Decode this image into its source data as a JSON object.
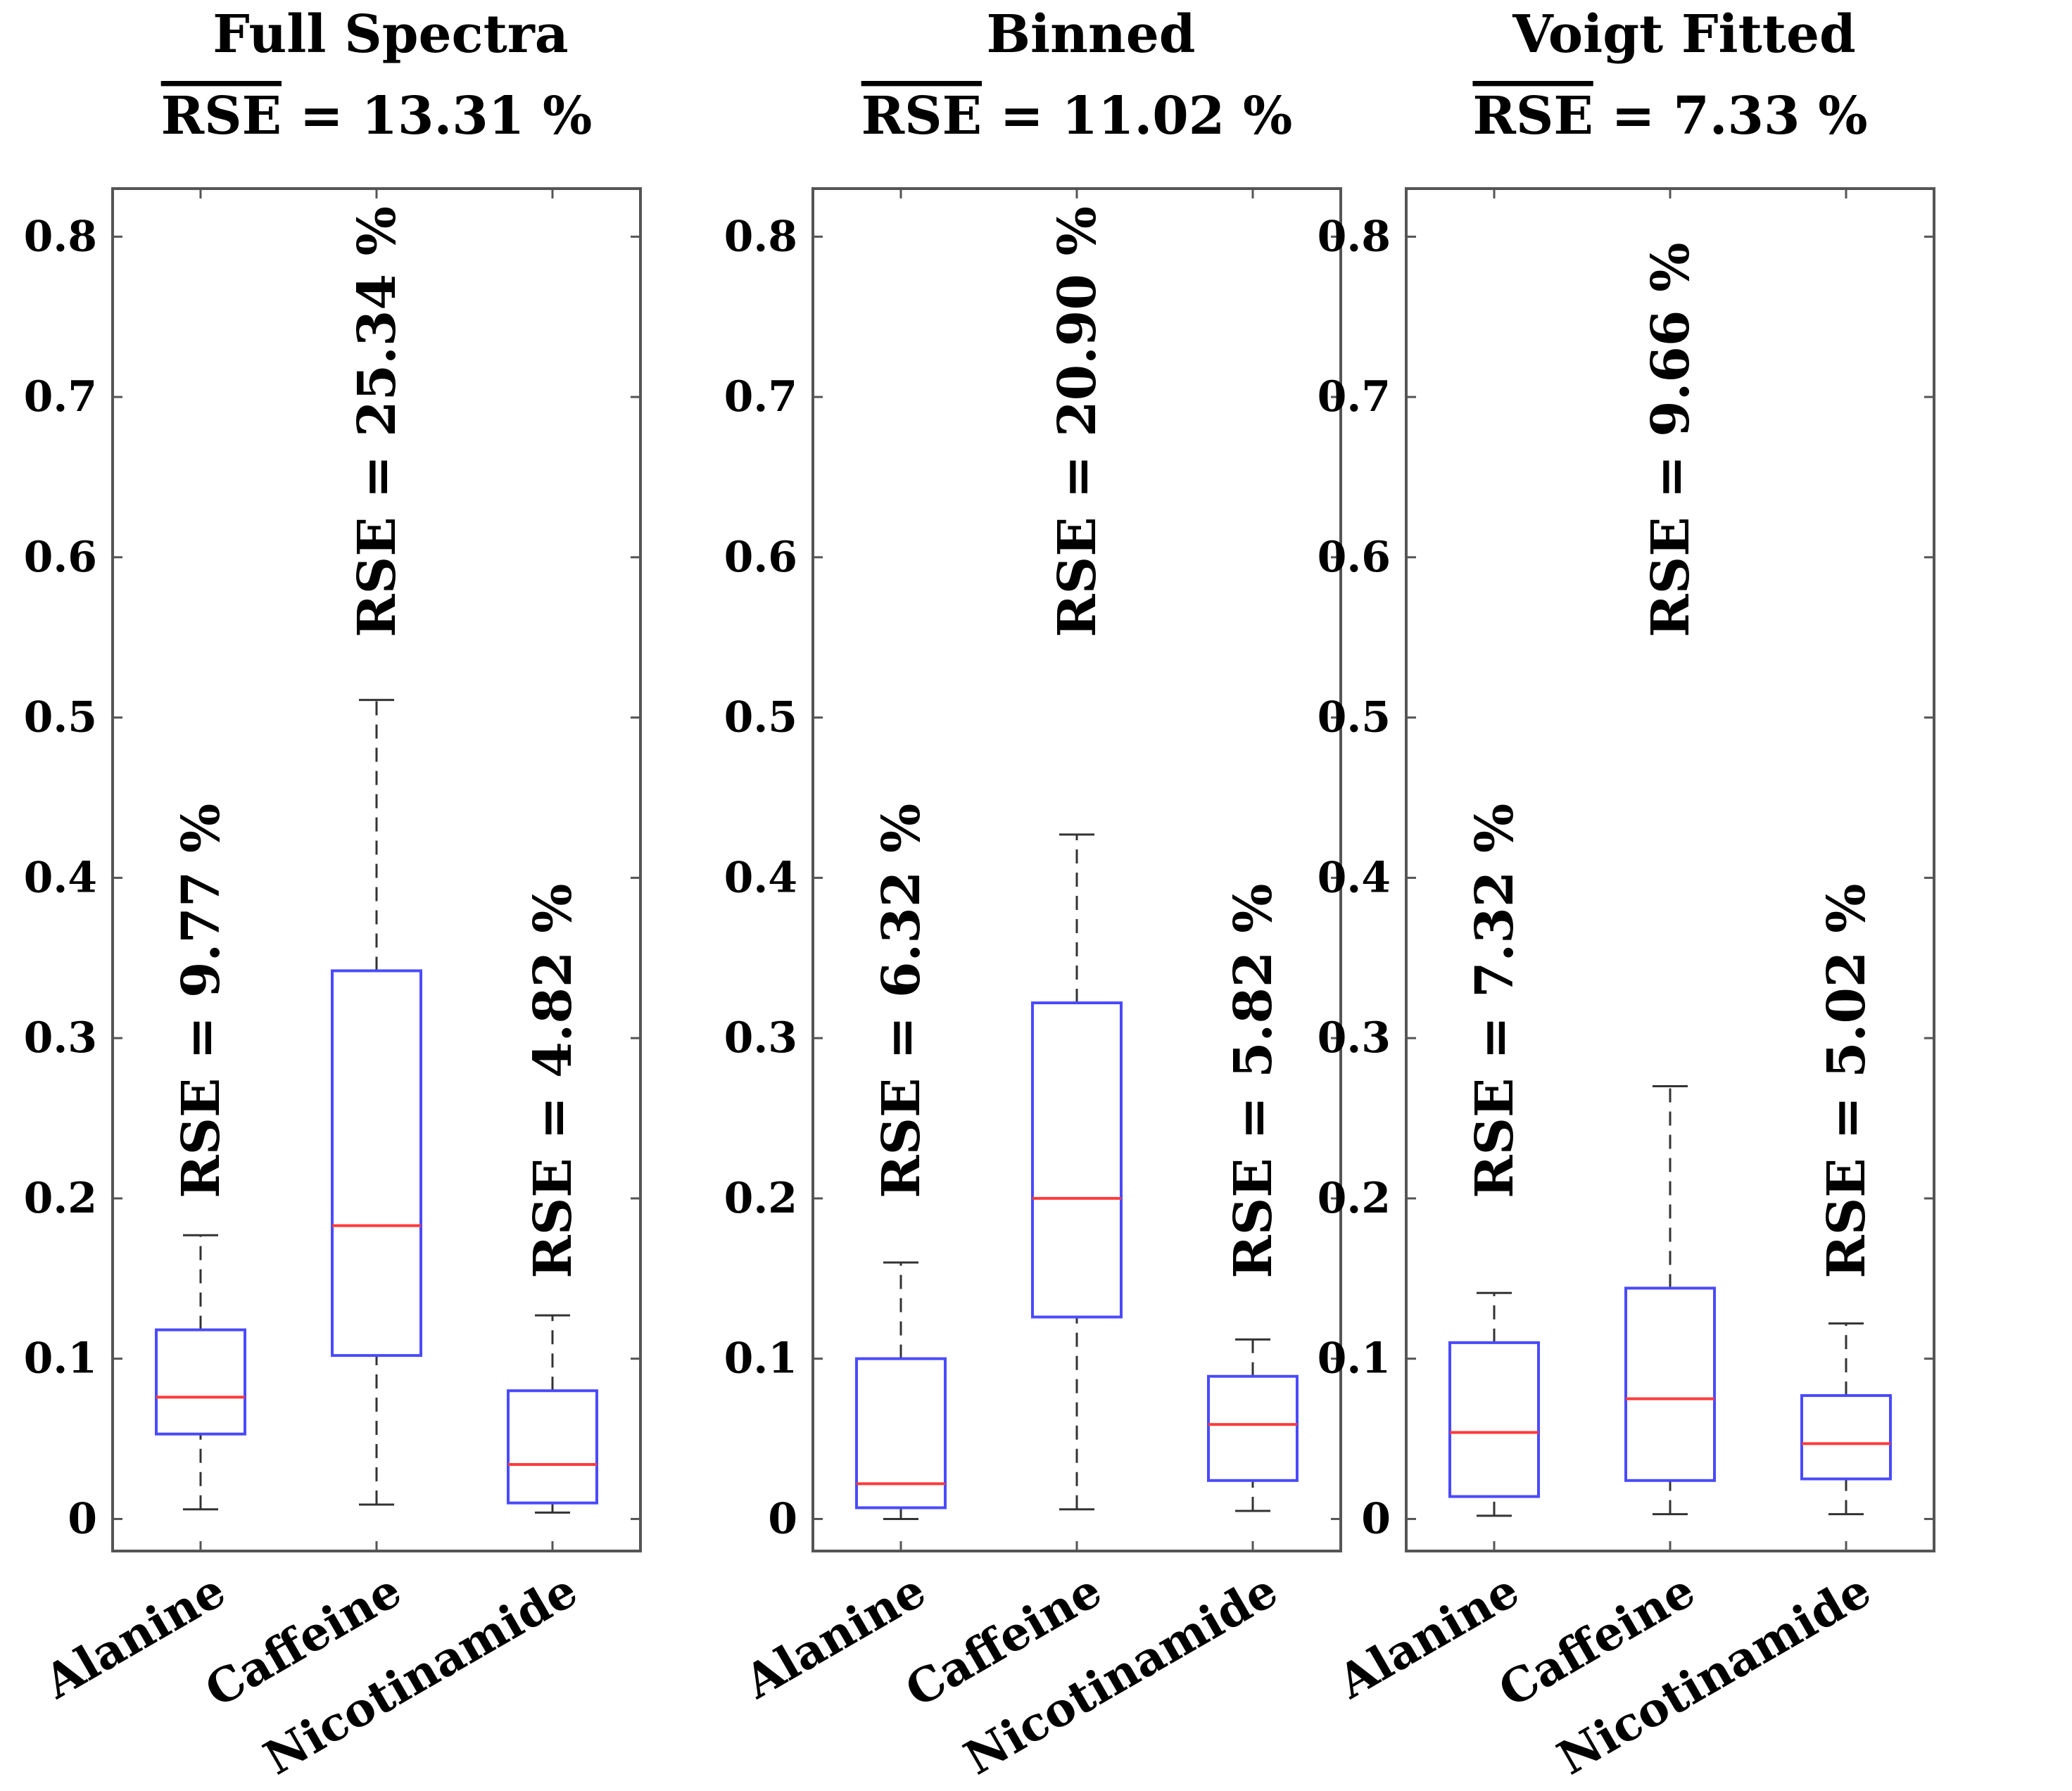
{
  "chart_data": [
    {
      "type": "box",
      "title": "Full Spectra",
      "subtitle": "RSE = 13.31 %",
      "subtitle_parts": {
        "overlined": "RSE",
        "rest": " = 13.31 %"
      },
      "ylim": [
        -0.02,
        0.83
      ],
      "yticks": [
        0,
        0.1,
        0.2,
        0.3,
        0.4,
        0.5,
        0.6,
        0.7,
        0.8
      ],
      "ytick_labels": [
        "0",
        "0.1",
        "0.2",
        "0.3",
        "0.4",
        "0.5",
        "0.6",
        "0.7",
        "0.8"
      ],
      "categories": [
        "Alanine",
        "Caffeine",
        "Nicotinamide"
      ],
      "boxes": [
        {
          "name": "Alanine",
          "min": 0.006,
          "q1": 0.053,
          "median": 0.076,
          "q3": 0.118,
          "max": 0.177,
          "label": "RSE = 9.77 %",
          "label_anchor": 0.2
        },
        {
          "name": "Caffeine",
          "min": 0.009,
          "q1": 0.102,
          "median": 0.183,
          "q3": 0.342,
          "max": 0.511,
          "label": "RSE = 25.34 %",
          "label_anchor": 0.55
        },
        {
          "name": "Nicotinamide",
          "min": 0.004,
          "q1": 0.01,
          "median": 0.034,
          "q3": 0.08,
          "max": 0.127,
          "label": "RSE = 4.82 %",
          "label_anchor": 0.15
        }
      ]
    },
    {
      "type": "box",
      "title": "Binned",
      "subtitle": "RSE = 11.02 %",
      "subtitle_parts": {
        "overlined": "RSE",
        "rest": " = 11.02 %"
      },
      "ylim": [
        -0.02,
        0.83
      ],
      "yticks": [
        0,
        0.1,
        0.2,
        0.3,
        0.4,
        0.5,
        0.6,
        0.7,
        0.8
      ],
      "ytick_labels": [
        "0",
        "0.1",
        "0.2",
        "0.3",
        "0.4",
        "0.5",
        "0.6",
        "0.7",
        "0.8"
      ],
      "categories": [
        "Alanine",
        "Caffeine",
        "Nicotinamide"
      ],
      "boxes": [
        {
          "name": "Alanine",
          "min": 0.0,
          "q1": 0.007,
          "median": 0.022,
          "q3": 0.1,
          "max": 0.16,
          "label": "RSE = 6.32 %",
          "label_anchor": 0.2
        },
        {
          "name": "Caffeine",
          "min": 0.006,
          "q1": 0.126,
          "median": 0.2,
          "q3": 0.322,
          "max": 0.427,
          "label": "RSE = 20.90 %",
          "label_anchor": 0.55
        },
        {
          "name": "Nicotinamide",
          "min": 0.005,
          "q1": 0.024,
          "median": 0.059,
          "q3": 0.089,
          "max": 0.112,
          "label": "RSE = 5.82 %",
          "label_anchor": 0.15
        }
      ]
    },
    {
      "type": "box",
      "title": "Voigt Fitted",
      "subtitle": "RSE = 7.33 %",
      "subtitle_parts": {
        "overlined": "RSE",
        "rest": " = 7.33 %"
      },
      "ylim": [
        -0.02,
        0.83
      ],
      "yticks": [
        0,
        0.1,
        0.2,
        0.3,
        0.4,
        0.5,
        0.6,
        0.7,
        0.8
      ],
      "ytick_labels": [
        "0",
        "0.1",
        "0.2",
        "0.3",
        "0.4",
        "0.5",
        "0.6",
        "0.7",
        "0.8"
      ],
      "categories": [
        "Alanine",
        "Caffeine",
        "Nicotinamide"
      ],
      "boxes": [
        {
          "name": "Alanine",
          "min": 0.002,
          "q1": 0.014,
          "median": 0.054,
          "q3": 0.11,
          "max": 0.141,
          "label": "RSE = 7.32 %",
          "label_anchor": 0.2
        },
        {
          "name": "Caffeine",
          "min": 0.003,
          "q1": 0.024,
          "median": 0.075,
          "q3": 0.144,
          "max": 0.27,
          "label": "RSE = 9.66 %",
          "label_anchor": 0.55
        },
        {
          "name": "Nicotinamide",
          "min": 0.003,
          "q1": 0.025,
          "median": 0.047,
          "q3": 0.077,
          "max": 0.122,
          "label": "RSE = 5.02 %",
          "label_anchor": 0.15
        }
      ]
    }
  ],
  "colors": {
    "box": "#4a4aff",
    "median": "#ff3b3b",
    "whisker": "#333333",
    "axis": "#555555"
  }
}
